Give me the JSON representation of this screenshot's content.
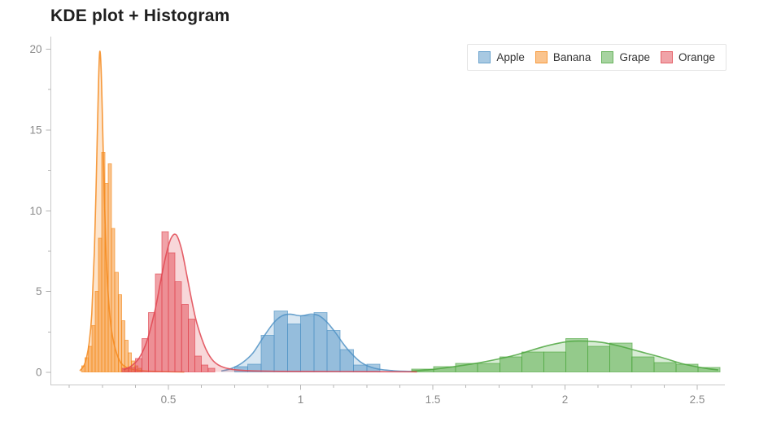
{
  "title": "KDE plot + Histogram",
  "legend": {
    "items": [
      "Apple",
      "Banana",
      "Grape",
      "Orange"
    ]
  },
  "chart_data": {
    "type": "histogram+kde",
    "title": "KDE plot + Histogram",
    "xlabel": "",
    "ylabel": "",
    "x_range": [
      0.05,
      2.6
    ],
    "y_range": [
      0,
      20
    ],
    "grid": false,
    "legend_position": "top-right",
    "axis_color": "#c9c9c9",
    "tick_color": "#b5b5b5",
    "x_ticks": [
      {
        "v": 0.5,
        "label": "0.5"
      },
      {
        "v": 1,
        "label": "1"
      },
      {
        "v": 1.5,
        "label": "1.5"
      },
      {
        "v": 2,
        "label": "2"
      },
      {
        "v": 2.5,
        "label": "2.5"
      }
    ],
    "y_ticks": [
      {
        "v": 0,
        "label": "0"
      },
      {
        "v": 5,
        "label": "5"
      },
      {
        "v": 10,
        "label": "10"
      },
      {
        "v": 15,
        "label": "15"
      },
      {
        "v": 20,
        "label": "20"
      }
    ],
    "x_minor_ticks": [
      0.125,
      0.25,
      0.375,
      0.625,
      0.75,
      0.875,
      1.125,
      1.25,
      1.375,
      1.625,
      1.75,
      1.875,
      2.125,
      2.25,
      2.375
    ],
    "y_minor_ticks": [
      2.5,
      7.5,
      12.5,
      17.5
    ],
    "series": [
      {
        "name": "Apple",
        "color": "#5193c5",
        "bin_start": 0.75,
        "bin_width": 0.05,
        "bin_heights": [
          0.35,
          0.5,
          2.3,
          3.8,
          3.0,
          3.5,
          3.7,
          2.6,
          1.4,
          0.45,
          0.5
        ],
        "kde": [
          [
            0.7,
            0.08
          ],
          [
            0.74,
            0.25
          ],
          [
            0.78,
            0.6
          ],
          [
            0.82,
            1.2
          ],
          [
            0.86,
            2.2
          ],
          [
            0.9,
            3.1
          ],
          [
            0.93,
            3.5
          ],
          [
            0.96,
            3.6
          ],
          [
            1.0,
            3.5
          ],
          [
            1.04,
            3.6
          ],
          [
            1.07,
            3.5
          ],
          [
            1.1,
            3.1
          ],
          [
            1.13,
            2.5
          ],
          [
            1.16,
            1.8
          ],
          [
            1.19,
            1.2
          ],
          [
            1.23,
            0.6
          ],
          [
            1.28,
            0.25
          ],
          [
            1.35,
            0.1
          ],
          [
            1.44,
            0.05
          ]
        ]
      },
      {
        "name": "Banana",
        "color": "#f58a1d",
        "bin_start": 0.1725,
        "bin_width": 0.0125,
        "bin_heights": [
          0.4,
          0.9,
          1.6,
          2.9,
          5.0,
          8.3,
          13.6,
          11.7,
          12.9,
          8.9,
          6.2,
          4.8,
          3.2,
          2.0,
          1.2,
          0.7,
          0.4,
          0.25
        ],
        "kde": [
          [
            0.165,
            0.1
          ],
          [
            0.18,
            0.4
          ],
          [
            0.19,
            0.9
          ],
          [
            0.2,
            1.8
          ],
          [
            0.21,
            3.6
          ],
          [
            0.22,
            7.5
          ],
          [
            0.228,
            12.5
          ],
          [
            0.235,
            17.5
          ],
          [
            0.24,
            19.8
          ],
          [
            0.245,
            19.0
          ],
          [
            0.25,
            16.0
          ],
          [
            0.2575,
            11.0
          ],
          [
            0.265,
            7.0
          ],
          [
            0.275,
            4.2
          ],
          [
            0.285,
            2.6
          ],
          [
            0.3,
            1.4
          ],
          [
            0.32,
            0.6
          ],
          [
            0.35,
            0.25
          ],
          [
            0.4,
            0.1
          ],
          [
            0.46,
            0.05
          ],
          [
            0.56,
            0.02
          ]
        ]
      },
      {
        "name": "Grape",
        "color": "#4fa741",
        "bin_start": 1.42,
        "bin_width": 0.0833,
        "bin_heights": [
          0.2,
          0.35,
          0.55,
          0.55,
          0.95,
          1.25,
          1.25,
          2.1,
          1.6,
          1.8,
          0.95,
          0.6,
          0.5,
          0.3
        ],
        "kde": [
          [
            1.42,
            0.08
          ],
          [
            1.5,
            0.18
          ],
          [
            1.58,
            0.35
          ],
          [
            1.66,
            0.55
          ],
          [
            1.74,
            0.8
          ],
          [
            1.82,
            1.1
          ],
          [
            1.9,
            1.5
          ],
          [
            1.96,
            1.75
          ],
          [
            2.02,
            1.92
          ],
          [
            2.08,
            1.93
          ],
          [
            2.14,
            1.85
          ],
          [
            2.2,
            1.65
          ],
          [
            2.28,
            1.3
          ],
          [
            2.36,
            0.95
          ],
          [
            2.44,
            0.55
          ],
          [
            2.52,
            0.28
          ],
          [
            2.58,
            0.15
          ]
        ]
      },
      {
        "name": "Orange",
        "color": "#e14751",
        "bin_start": 0.325,
        "bin_width": 0.025,
        "bin_heights": [
          0.25,
          0.3,
          0.85,
          2.1,
          3.7,
          6.1,
          8.7,
          7.4,
          5.6,
          4.2,
          3.3,
          1.0,
          0.45,
          0.25
        ],
        "kde": [
          [
            0.33,
            0.15
          ],
          [
            0.36,
            0.4
          ],
          [
            0.39,
            0.9
          ],
          [
            0.42,
            2.0
          ],
          [
            0.45,
            3.9
          ],
          [
            0.47,
            5.6
          ],
          [
            0.49,
            7.2
          ],
          [
            0.51,
            8.3
          ],
          [
            0.53,
            8.5
          ],
          [
            0.55,
            7.6
          ],
          [
            0.57,
            6.0
          ],
          [
            0.59,
            4.3
          ],
          [
            0.61,
            2.9
          ],
          [
            0.64,
            1.5
          ],
          [
            0.67,
            0.7
          ],
          [
            0.71,
            0.3
          ],
          [
            0.78,
            0.12
          ],
          [
            0.92,
            0.06
          ],
          [
            1.15,
            0.05
          ],
          [
            1.44,
            0.03
          ]
        ]
      }
    ]
  }
}
